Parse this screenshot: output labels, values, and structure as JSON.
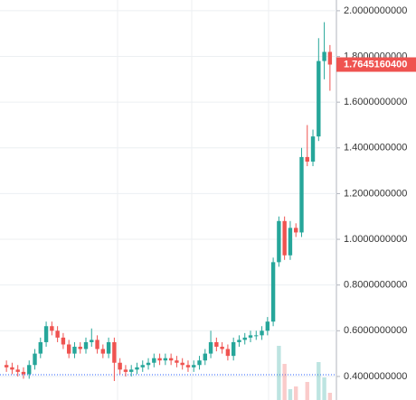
{
  "chart_data": {
    "type": "candlestick",
    "open": [
      0.45,
      0.44,
      0.43,
      0.42,
      0.41,
      0.45,
      0.5,
      0.55,
      0.62,
      0.6,
      0.57,
      0.54,
      0.5,
      0.53,
      0.52,
      0.55,
      0.56,
      0.52,
      0.5,
      0.55,
      0.46,
      0.43,
      0.42,
      0.43,
      0.44,
      0.45,
      0.46,
      0.48,
      0.47,
      0.48,
      0.47,
      0.46,
      0.45,
      0.44,
      0.45,
      0.47,
      0.5,
      0.55,
      0.53,
      0.52,
      0.49,
      0.55,
      0.56,
      0.57,
      0.58,
      0.58,
      0.6,
      0.64,
      0.9,
      1.08,
      0.93,
      1.05,
      1.03,
      1.36,
      1.34,
      1.45,
      1.78,
      1.82
    ],
    "high": [
      0.47,
      0.46,
      0.45,
      0.44,
      0.47,
      0.52,
      0.57,
      0.64,
      0.64,
      0.62,
      0.59,
      0.56,
      0.55,
      0.55,
      0.57,
      0.61,
      0.58,
      0.54,
      0.57,
      0.57,
      0.48,
      0.45,
      0.45,
      0.46,
      0.47,
      0.48,
      0.5,
      0.5,
      0.5,
      0.5,
      0.49,
      0.48,
      0.47,
      0.47,
      0.49,
      0.52,
      0.6,
      0.57,
      0.55,
      0.54,
      0.57,
      0.58,
      0.59,
      0.6,
      0.6,
      0.62,
      0.66,
      0.92,
      1.1,
      1.1,
      1.08,
      1.07,
      1.4,
      1.5,
      1.48,
      1.88,
      1.95,
      1.85
    ],
    "low": [
      0.42,
      0.41,
      0.4,
      0.39,
      0.39,
      0.43,
      0.48,
      0.53,
      0.58,
      0.55,
      0.52,
      0.48,
      0.48,
      0.5,
      0.5,
      0.53,
      0.5,
      0.48,
      0.48,
      0.38,
      0.41,
      0.4,
      0.4,
      0.41,
      0.42,
      0.43,
      0.44,
      0.45,
      0.45,
      0.45,
      0.44,
      0.43,
      0.42,
      0.42,
      0.43,
      0.45,
      0.48,
      0.51,
      0.5,
      0.47,
      0.47,
      0.53,
      0.54,
      0.55,
      0.56,
      0.56,
      0.58,
      0.62,
      0.88,
      0.91,
      0.91,
      1.01,
      1.01,
      1.32,
      1.32,
      1.43,
      1.7,
      1.65
    ],
    "close": [
      0.44,
      0.43,
      0.42,
      0.41,
      0.45,
      0.5,
      0.55,
      0.62,
      0.6,
      0.57,
      0.54,
      0.5,
      0.53,
      0.52,
      0.55,
      0.56,
      0.52,
      0.5,
      0.55,
      0.46,
      0.43,
      0.42,
      0.43,
      0.44,
      0.45,
      0.46,
      0.48,
      0.47,
      0.48,
      0.47,
      0.46,
      0.45,
      0.44,
      0.45,
      0.47,
      0.5,
      0.55,
      0.53,
      0.52,
      0.49,
      0.55,
      0.56,
      0.57,
      0.58,
      0.58,
      0.6,
      0.64,
      0.9,
      1.08,
      0.93,
      1.05,
      1.03,
      1.36,
      1.34,
      1.45,
      1.78,
      1.82,
      1.76451604
    ],
    "volume": [
      0,
      0,
      0,
      0,
      0,
      0,
      0,
      0,
      0,
      0,
      0,
      0,
      0,
      0,
      0,
      0,
      0,
      0,
      0,
      0,
      0,
      0,
      0,
      0,
      0,
      0,
      0,
      0,
      0,
      0,
      0,
      0,
      0,
      0,
      0,
      0,
      0,
      0,
      0,
      0,
      0,
      0,
      0,
      0,
      0,
      0,
      0,
      0,
      60,
      40,
      12,
      15,
      0,
      20,
      0,
      42,
      25,
      8
    ],
    "up_color": "#26a69a",
    "down_color": "#ef5350",
    "ylim": [
      0.297,
      2.047
    ],
    "yticks": [
      {
        "value": 0.4,
        "label": "0.4000000000"
      },
      {
        "value": 0.6,
        "label": "0.6000000000"
      },
      {
        "value": 0.8,
        "label": "0.8000000000"
      },
      {
        "value": 1.0,
        "label": "1.0000000000"
      },
      {
        "value": 1.2,
        "label": "1.2000000000"
      },
      {
        "value": 1.4,
        "label": "1.4000000000"
      },
      {
        "value": 1.6,
        "label": "1.6000000000"
      },
      {
        "value": 1.8,
        "label": "1.8000000000"
      },
      {
        "value": 2.0,
        "label": "2.0000000000"
      }
    ],
    "grid": true,
    "last_price_label": "1.7645160400"
  }
}
